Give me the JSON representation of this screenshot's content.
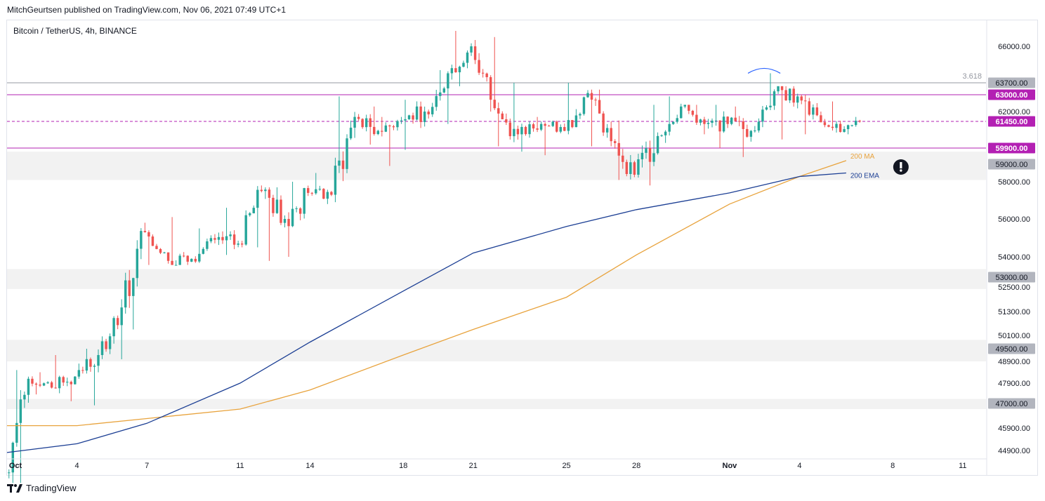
{
  "header": {
    "published": "MitchGeurtsen published on TradingView.com, Nov 06, 2021 07:49 UTC+1",
    "symbol": "Bitcoin / TetherUS, 4h, BINANCE"
  },
  "footer": {
    "brand": "TradingView",
    "brand_icon": "tradingview-logo-icon"
  },
  "colors": {
    "up": "#26a69a",
    "down": "#ef5350",
    "ma": "#e8a33d",
    "ema": "#1c3f94",
    "resistance": "#b320b3",
    "fib": "#9598a1",
    "zone": "#f2f2f2",
    "label_gray": "#b2b5be"
  },
  "chart_data": {
    "type": "candlestick",
    "title": "",
    "timeframe": "4h",
    "x_range": [
      "2021-10-01",
      "2021-11-12"
    ],
    "y_range": [
      44600,
      67800
    ],
    "x_ticks": [
      {
        "date": "2021-10-01",
        "label": "Oct"
      },
      {
        "date": "2021-10-04",
        "label": "4"
      },
      {
        "date": "2021-10-07",
        "label": "7"
      },
      {
        "date": "2021-10-11",
        "label": "11"
      },
      {
        "date": "2021-10-14",
        "label": "14"
      },
      {
        "date": "2021-10-18",
        "label": "18"
      },
      {
        "date": "2021-10-21",
        "label": "21"
      },
      {
        "date": "2021-10-25",
        "label": "25"
      },
      {
        "date": "2021-10-28",
        "label": "28"
      },
      {
        "date": "2021-11-01",
        "label": "Nov"
      },
      {
        "date": "2021-11-04",
        "label": "4"
      },
      {
        "date": "2021-11-08",
        "label": "8"
      },
      {
        "date": "2021-11-11",
        "label": "11"
      }
    ],
    "y_ticks": [
      "66000.00",
      "62000.00",
      "58000.00",
      "56000.00",
      "54000.00",
      "52500.00",
      "51300.00",
      "50100.00",
      "48900.00",
      "47900.00",
      "45900.00",
      "44900.00"
    ],
    "daily_ohlc": [
      {
        "date": "2021-10-01",
        "o": 43800,
        "h": 48500,
        "l": 43300,
        "c": 48100
      },
      {
        "date": "2021-10-02",
        "o": 48100,
        "h": 48400,
        "l": 47400,
        "c": 47700
      },
      {
        "date": "2021-10-03",
        "o": 47700,
        "h": 49200,
        "l": 47100,
        "c": 48200
      },
      {
        "date": "2021-10-04",
        "o": 48200,
        "h": 49500,
        "l": 46900,
        "c": 49200
      },
      {
        "date": "2021-10-05",
        "o": 49200,
        "h": 51900,
        "l": 49000,
        "c": 51500
      },
      {
        "date": "2021-10-06",
        "o": 51500,
        "h": 55800,
        "l": 50400,
        "c": 55300
      },
      {
        "date": "2021-10-07",
        "o": 55300,
        "h": 55400,
        "l": 53600,
        "c": 53800
      },
      {
        "date": "2021-10-08",
        "o": 53800,
        "h": 56100,
        "l": 53600,
        "c": 53900
      },
      {
        "date": "2021-10-09",
        "o": 53900,
        "h": 55500,
        "l": 53700,
        "c": 54900
      },
      {
        "date": "2021-10-10",
        "o": 54900,
        "h": 56600,
        "l": 54100,
        "c": 54700
      },
      {
        "date": "2021-10-11",
        "o": 54700,
        "h": 57800,
        "l": 54500,
        "c": 57500
      },
      {
        "date": "2021-10-12",
        "o": 57500,
        "h": 57700,
        "l": 53800,
        "c": 56000
      },
      {
        "date": "2021-10-13",
        "o": 56000,
        "h": 58000,
        "l": 54000,
        "c": 57400
      },
      {
        "date": "2021-10-14",
        "o": 57400,
        "h": 58500,
        "l": 56800,
        "c": 57300
      },
      {
        "date": "2021-10-15",
        "o": 57300,
        "h": 62900,
        "l": 56900,
        "c": 61700
      },
      {
        "date": "2021-10-16",
        "o": 61700,
        "h": 62300,
        "l": 60100,
        "c": 60900
      },
      {
        "date": "2021-10-17",
        "o": 60900,
        "h": 61700,
        "l": 58900,
        "c": 61500
      },
      {
        "date": "2021-10-18",
        "o": 61500,
        "h": 62700,
        "l": 59800,
        "c": 62000
      },
      {
        "date": "2021-10-19",
        "o": 62000,
        "h": 64500,
        "l": 61300,
        "c": 64300
      },
      {
        "date": "2021-10-20",
        "o": 64300,
        "h": 67000,
        "l": 63500,
        "c": 66000
      },
      {
        "date": "2021-10-21",
        "o": 66000,
        "h": 66600,
        "l": 62000,
        "c": 62200
      },
      {
        "date": "2021-10-22",
        "o": 62200,
        "h": 63700,
        "l": 60000,
        "c": 60700
      },
      {
        "date": "2021-10-23",
        "o": 60700,
        "h": 61700,
        "l": 59700,
        "c": 61300
      },
      {
        "date": "2021-10-24",
        "o": 61300,
        "h": 61500,
        "l": 59500,
        "c": 60900
      },
      {
        "date": "2021-10-25",
        "o": 60900,
        "h": 63700,
        "l": 60700,
        "c": 63100
      },
      {
        "date": "2021-10-26",
        "o": 63100,
        "h": 63300,
        "l": 60000,
        "c": 60300
      },
      {
        "date": "2021-10-27",
        "o": 60300,
        "h": 61500,
        "l": 58100,
        "c": 58400
      },
      {
        "date": "2021-10-28",
        "o": 58400,
        "h": 62400,
        "l": 57800,
        "c": 60600
      },
      {
        "date": "2021-10-29",
        "o": 60600,
        "h": 62900,
        "l": 60200,
        "c": 62300
      },
      {
        "date": "2021-10-30",
        "o": 62300,
        "h": 62400,
        "l": 60700,
        "c": 61300
      },
      {
        "date": "2021-10-31",
        "o": 61300,
        "h": 62400,
        "l": 59900,
        "c": 61300
      },
      {
        "date": "2021-11-01",
        "o": 61300,
        "h": 62300,
        "l": 59400,
        "c": 60900
      },
      {
        "date": "2021-11-02",
        "o": 60900,
        "h": 64300,
        "l": 60800,
        "c": 63200
      },
      {
        "date": "2021-11-03",
        "o": 63200,
        "h": 63500,
        "l": 60400,
        "c": 62900
      },
      {
        "date": "2021-11-04",
        "o": 62900,
        "h": 63000,
        "l": 60700,
        "c": 61400
      },
      {
        "date": "2021-11-05",
        "o": 61400,
        "h": 62600,
        "l": 60800,
        "c": 61000
      },
      {
        "date": "2021-11-06",
        "o": 61000,
        "h": 61700,
        "l": 60700,
        "c": 61450
      }
    ],
    "series": [
      {
        "name": "200 MA",
        "points": [
          [
            "2021-10-01",
            46000
          ],
          [
            "2021-10-04",
            46000
          ],
          [
            "2021-10-07",
            46300
          ],
          [
            "2021-10-11",
            46700
          ],
          [
            "2021-10-14",
            47600
          ],
          [
            "2021-10-18",
            49200
          ],
          [
            "2021-10-21",
            50400
          ],
          [
            "2021-10-25",
            52000
          ],
          [
            "2021-10-28",
            54100
          ],
          [
            "2021-11-01",
            56800
          ],
          [
            "2021-11-04",
            58300
          ],
          [
            "2021-11-06",
            59200
          ]
        ]
      },
      {
        "name": "200 EMA",
        "points": [
          [
            "2021-10-01",
            44800
          ],
          [
            "2021-10-04",
            45200
          ],
          [
            "2021-10-07",
            46100
          ],
          [
            "2021-10-11",
            47900
          ],
          [
            "2021-10-14",
            49800
          ],
          [
            "2021-10-18",
            52300
          ],
          [
            "2021-10-21",
            54200
          ],
          [
            "2021-10-25",
            55600
          ],
          [
            "2021-10-28",
            56500
          ],
          [
            "2021-11-01",
            57400
          ],
          [
            "2021-11-04",
            58300
          ],
          [
            "2021-11-06",
            58500
          ]
        ]
      }
    ],
    "horizontal_levels": [
      {
        "value": 63700,
        "label": "63700.00",
        "style": "fib"
      },
      {
        "value": 63000,
        "label": "63000.00",
        "style": "resistance"
      },
      {
        "value": 61450,
        "label": "61450.00",
        "style": "last-price"
      },
      {
        "value": 59900,
        "label": "59900.00",
        "style": "resistance"
      },
      {
        "value": 59000,
        "label": "59000.00",
        "style": "zone"
      },
      {
        "value": 53000,
        "label": "53000.00",
        "style": "zone"
      },
      {
        "value": 49500,
        "label": "49500.00",
        "style": "zone"
      },
      {
        "value": 47000,
        "label": "47000.00",
        "style": "zone"
      }
    ],
    "zones": [
      [
        58100,
        59700
      ],
      [
        52400,
        53400
      ],
      [
        48900,
        49900
      ],
      [
        46700,
        47200
      ]
    ],
    "fib_label": "3.618",
    "annotations": [
      {
        "type": "exclamation-icon",
        "date": "2021-11-06",
        "value": 59000
      }
    ],
    "grid": false,
    "legend_position": "inline-right"
  }
}
